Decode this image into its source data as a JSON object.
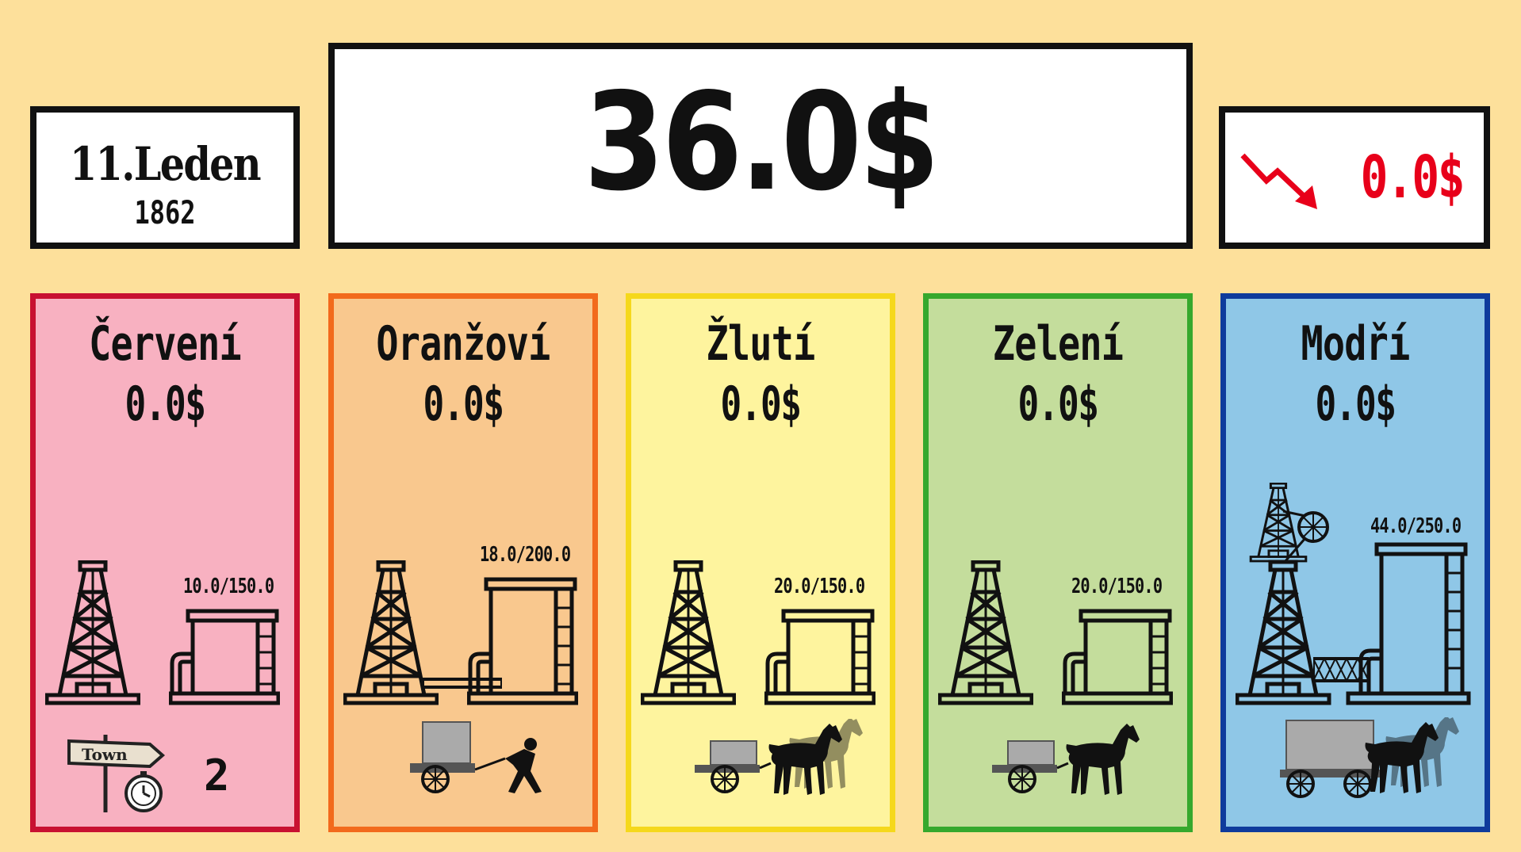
{
  "date": {
    "day_month": "11.Leden",
    "year": "1862"
  },
  "money": {
    "total": "36.0$"
  },
  "change": {
    "value": "0.0$",
    "trend": "down",
    "color": "#e8001a"
  },
  "teams": [
    {
      "name": "Červení",
      "money": "0.0$",
      "storage": "10.0/150.0",
      "transport": "town-time",
      "count": "2",
      "border": "#c81131",
      "fill": "#f8b1c1"
    },
    {
      "name": "Oranžoví",
      "money": "0.0$",
      "storage": "18.0/200.0",
      "transport": "man-cart",
      "border": "#f26a1c",
      "fill": "#f9c88e"
    },
    {
      "name": "Žlutí",
      "money": "0.0$",
      "storage": "20.0/150.0",
      "transport": "two-horse-cart",
      "border": "#f5d81c",
      "fill": "#fef49e"
    },
    {
      "name": "Zelení",
      "money": "0.0$",
      "storage": "20.0/150.0",
      "transport": "one-horse-cart",
      "border": "#36a82d",
      "fill": "#c4dd9c"
    },
    {
      "name": "Modří",
      "money": "0.0$",
      "storage": "44.0/250.0",
      "transport": "two-horse-wagon",
      "border": "#0f3b9c",
      "fill": "#8fc7e7"
    }
  ],
  "icons": [
    "oil-derrick-icon",
    "storage-tank-icon",
    "pipeline-icon",
    "cart-icon",
    "horse-icon",
    "worker-icon",
    "town-signpost-icon",
    "pocket-watch-icon",
    "trend-down-arrow-icon"
  ]
}
